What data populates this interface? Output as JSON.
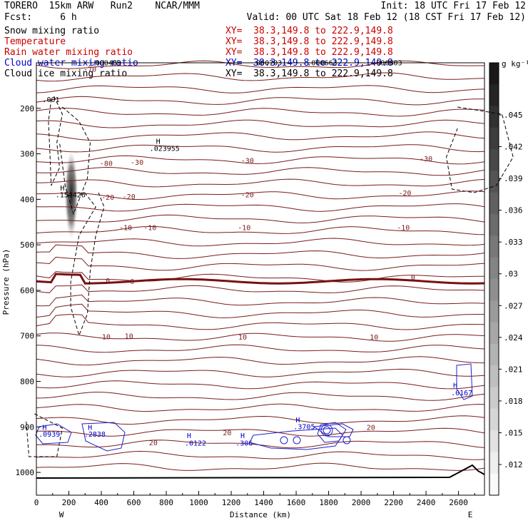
{
  "header": {
    "left_line1": "TORERO  15km ARW   Run2    NCAR/MMM",
    "left_line2": "Fcst:     6 h",
    "right_line1": "Init: 18 UTC Fri 17 Feb 12",
    "right_line2": "Valid: 00 UTC Sat 18 Feb 12 (18 CST Fri 17 Feb 12)",
    "fields": [
      {
        "name": "Snow mixing ratio",
        "xy": "XY=  38.3,149.8 to 222.9,149.8",
        "color": "#000000",
        "xy_color": "#cc0000"
      },
      {
        "name": "Temperature",
        "xy": "XY=  38.3,149.8 to 222.9,149.8",
        "color": "#cc0000",
        "xy_color": "#cc0000"
      },
      {
        "name": "Rain water mixing ratio",
        "xy": "XY=  38.3,149.8 to 222.9,149.8",
        "color": "#cc0000",
        "xy_color": "#cc0000"
      },
      {
        "name": "Cloud water mixing ratio",
        "xy": "XY=  38.3,149.8 to 222.9,149.8",
        "color": "#0000cc",
        "xy_color": "#0000cc"
      },
      {
        "name": "Cloud ice mixing ratio",
        "xy": "XY=  38.3,149.8 to 222.9,149.8",
        "color": "#000000",
        "xy_color": "#000000"
      }
    ]
  },
  "chart_data": {
    "type": "contour cross-section",
    "xlabel": "Distance (km)",
    "ylabel": "Pressure (hPa)",
    "x_ticks": [
      0,
      200,
      400,
      600,
      800,
      1000,
      1200,
      1400,
      1600,
      1800,
      2000,
      2200,
      2400,
      2600
    ],
    "y_ticks": [
      200,
      300,
      400,
      500,
      600,
      700,
      800,
      900,
      1000
    ],
    "xlim": [
      0,
      2760
    ],
    "ylim": [
      1050,
      100
    ],
    "y_scale": "linear",
    "left_end_label": "W",
    "right_end_label": "E",
    "colorbar": {
      "unit": "g kg⁻¹",
      "ticks": [
        ".045",
        ".042",
        ".039",
        ".036",
        ".033",
        ".03",
        ".027",
        ".024",
        ".021",
        ".018",
        ".015",
        ".012"
      ]
    },
    "temperature_contours": [
      {
        "label": "-70",
        "p": 110
      },
      {
        "label": "-30",
        "p": 330
      },
      {
        "label": "-20",
        "p": 390
      },
      {
        "label": "-10",
        "p": 455
      },
      {
        "label": "0",
        "p": 580
      },
      {
        "label": "10",
        "p": 705
      },
      {
        "label": "20",
        "p": 922
      }
    ],
    "contour_labels": [
      {
        "text": "-70",
        "x": 330,
        "p": 113
      },
      {
        "text": "-80",
        "x": 430,
        "p": 320
      },
      {
        "text": "-30",
        "x": 620,
        "p": 318
      },
      {
        "text": "-30",
        "x": 1300,
        "p": 314
      },
      {
        "text": "-30",
        "x": 2400,
        "p": 310
      },
      {
        "text": "-20",
        "x": 440,
        "p": 395
      },
      {
        "text": "-20",
        "x": 570,
        "p": 393
      },
      {
        "text": "-20",
        "x": 1300,
        "p": 389
      },
      {
        "text": "-20",
        "x": 2270,
        "p": 385
      },
      {
        "text": "-10",
        "x": 550,
        "p": 461
      },
      {
        "text": "-10",
        "x": 700,
        "p": 461
      },
      {
        "text": "-10",
        "x": 1280,
        "p": 461
      },
      {
        "text": "-10",
        "x": 2260,
        "p": 461
      },
      {
        "text": "0",
        "x": 440,
        "p": 578
      },
      {
        "text": "0",
        "x": 590,
        "p": 580
      },
      {
        "text": "0",
        "x": 2320,
        "p": 570
      },
      {
        "text": "10",
        "x": 430,
        "p": 701
      },
      {
        "text": "10",
        "x": 570,
        "p": 700
      },
      {
        "text": "10",
        "x": 1270,
        "p": 702
      },
      {
        "text": "10",
        "x": 2080,
        "p": 702
      },
      {
        "text": "20",
        "x": 720,
        "p": 934
      },
      {
        "text": "20",
        "x": 1175,
        "p": 912
      },
      {
        "text": "20",
        "x": 2060,
        "p": 900
      }
    ],
    "extrema_labels": [
      {
        "text": ".001",
        "x": 90,
        "p": 180,
        "color": "#000000"
      },
      {
        "text": "H",
        "x": 750,
        "p": 272,
        "color": "#000000"
      },
      {
        "text": ".023955",
        "x": 790,
        "p": 287,
        "color": "#000000"
      },
      {
        "text": "H",
        "x": 160,
        "p": 374,
        "color": "#000000"
      },
      {
        "text": ".154426",
        "x": 210,
        "p": 389,
        "color": "#000000"
      },
      {
        "text": ".000489",
        "x": 430,
        "p": 99,
        "color": "#000000"
      },
      {
        "text": ".000703",
        "x": 1420,
        "p": 99,
        "color": "#000000"
      },
      {
        "text": ".000663",
        "x": 1760,
        "p": 99,
        "color": "#000000"
      },
      {
        "text": ".000803",
        "x": 2160,
        "p": 99,
        "color": "#000000"
      },
      {
        "text": "H",
        "x": 50,
        "p": 900,
        "color": "#0000cc"
      },
      {
        "text": ".0939",
        "x": 80,
        "p": 915,
        "color": "#0000cc"
      },
      {
        "text": "H",
        "x": 330,
        "p": 900,
        "color": "#0000cc"
      },
      {
        "text": ".2838",
        "x": 360,
        "p": 915,
        "color": "#0000cc"
      },
      {
        "text": "H",
        "x": 940,
        "p": 918,
        "color": "#0000cc"
      },
      {
        "text": ".0122",
        "x": 980,
        "p": 935,
        "color": "#0000cc"
      },
      {
        "text": "H",
        "x": 1270,
        "p": 918,
        "color": "#0000cc"
      },
      {
        "text": ".306",
        "x": 1280,
        "p": 935,
        "color": "#0000cc"
      },
      {
        "text": "H",
        "x": 1610,
        "p": 884,
        "color": "#0000cc"
      },
      {
        "text": ".3705",
        "x": 1650,
        "p": 899,
        "color": "#0000cc"
      },
      {
        "text": "H",
        "x": 2580,
        "p": 808,
        "color": "#0000cc"
      },
      {
        "text": ".0167",
        "x": 2620,
        "p": 824,
        "color": "#0000cc"
      }
    ]
  }
}
